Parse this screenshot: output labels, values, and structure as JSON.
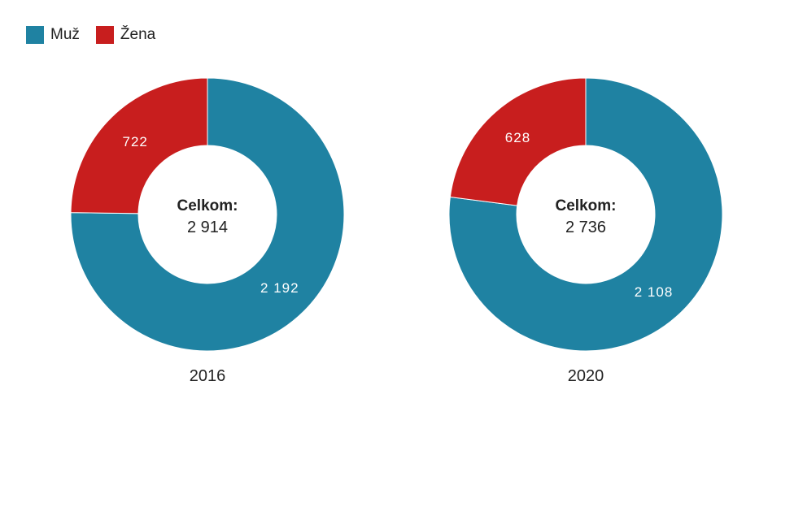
{
  "chart_data": {
    "type": "pie",
    "variant": "donut",
    "legend": [
      {
        "label": "Muž",
        "color": "#1f82a2"
      },
      {
        "label": "Žena",
        "color": "#c81e1e"
      }
    ],
    "center_title": "Celkom:",
    "charts": [
      {
        "label": "2016",
        "total": 2914,
        "total_display": "2 914",
        "slices": [
          {
            "series": "Muž",
            "value": 2192,
            "display": "2 192"
          },
          {
            "series": "Žena",
            "value": 722,
            "display": "722"
          }
        ]
      },
      {
        "label": "2020",
        "total": 2736,
        "total_display": "2 736",
        "slices": [
          {
            "series": "Muž",
            "value": 2108,
            "display": "2 108"
          },
          {
            "series": "Žena",
            "value": 628,
            "display": "628"
          }
        ]
      }
    ]
  }
}
